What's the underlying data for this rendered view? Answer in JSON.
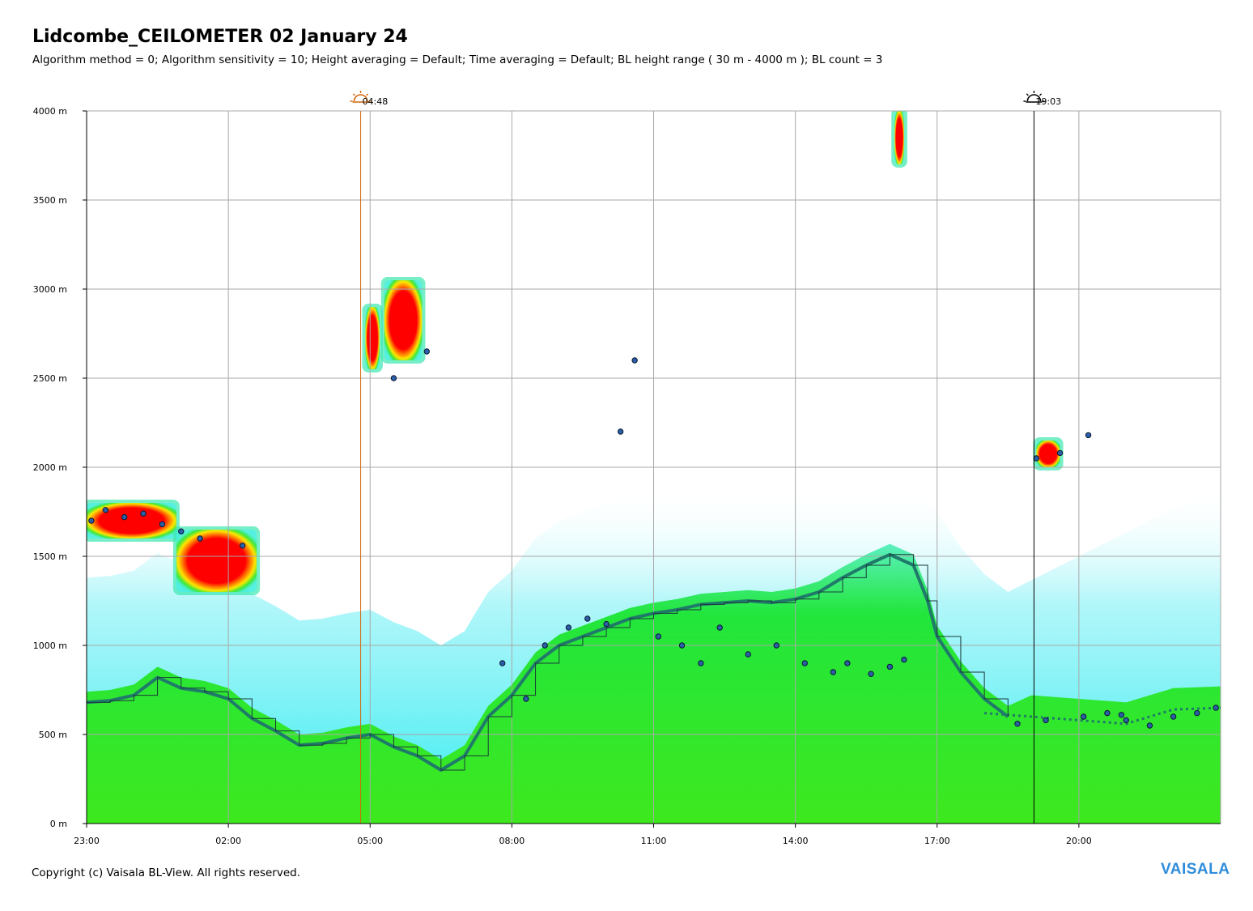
{
  "header": {
    "title": "Lidcombe_CEILOMETER 02 January 24",
    "subtitle": "Algorithm method = 0; Algorithm sensitivity = 10; Height averaging = Default; Time averaging = Default; BL height range ( 30 m - 4000 m ); BL count = 3"
  },
  "footer": {
    "copyright": "Copyright (c) Vaisala BL-View. All rights reserved.",
    "brand": "VAISALA"
  },
  "chart_data": {
    "type": "heatmap",
    "title": "Lidcombe_CEILOMETER 02 January 24",
    "xlabel": "",
    "ylabel": "",
    "x_range_hours": [
      23,
      47
    ],
    "ylim": [
      0,
      4000
    ],
    "y_ticks": [
      0,
      500,
      1000,
      1500,
      2000,
      2500,
      3000,
      3500,
      4000
    ],
    "y_tick_labels": [
      "0 m",
      "500 m",
      "1000 m",
      "1500 m",
      "2000 m",
      "2500 m",
      "3000 m",
      "3500 m",
      "4000 m"
    ],
    "x_ticks": [
      23,
      26,
      29,
      32,
      35,
      38,
      41,
      44
    ],
    "x_tick_labels": [
      "23:00",
      "02:00",
      "05:00",
      "08:00",
      "11:00",
      "14:00",
      "17:00",
      "20:00"
    ],
    "grid": true,
    "markers": [
      {
        "name": "sunrise",
        "time": "04:48",
        "hour": 28.8,
        "color": "#d4660a",
        "icon": "sunrise-icon"
      },
      {
        "name": "sunset",
        "time": "19:03",
        "hour": 43.05,
        "color": "#000000",
        "icon": "sunset-icon"
      }
    ],
    "colors": {
      "background_low": "#22e63c",
      "aerosol_mid": "#38f0f0",
      "cloud_strong": "#ff0000",
      "bl_height": "#1f7a6a",
      "cloud_base_points": "#2a5fa8",
      "cloud_top": "#a0a0a0"
    },
    "bl_height_m": {
      "hours": [
        23,
        23.5,
        24,
        24.5,
        25,
        25.5,
        26,
        26.5,
        27,
        27.5,
        28,
        28.5,
        29,
        29.5,
        30,
        30.5,
        31,
        31.5,
        32,
        32.5,
        33,
        33.5,
        34,
        34.5,
        35,
        35.5,
        36,
        36.5,
        37,
        37.5,
        38,
        38.5,
        39,
        39.5,
        40,
        40.5,
        40.8,
        41,
        41.5,
        42,
        42.5
      ],
      "values": [
        680,
        690,
        720,
        820,
        760,
        740,
        700,
        590,
        520,
        440,
        450,
        480,
        500,
        430,
        380,
        300,
        380,
        600,
        720,
        900,
        1000,
        1050,
        1100,
        1150,
        1180,
        1200,
        1230,
        1240,
        1250,
        1240,
        1260,
        1300,
        1380,
        1450,
        1510,
        1450,
        1250,
        1050,
        850,
        700,
        600
      ]
    },
    "bl_height_m_evening": {
      "hours": [
        42,
        43,
        44,
        45,
        46,
        47
      ],
      "values": [
        620,
        600,
        580,
        560,
        640,
        650
      ]
    },
    "cloud_base_m": {
      "hours": [
        23.1,
        23.4,
        23.8,
        24.2,
        24.6,
        25,
        25.4,
        26.3,
        29.5,
        30.2,
        31.8,
        32.3,
        32.7,
        33.2,
        33.6,
        34,
        34.3,
        34.6,
        35.1,
        35.6,
        36,
        36.4,
        37,
        37.6,
        38.2,
        38.8,
        39.1,
        39.6,
        40,
        40.3,
        43.1,
        43.6,
        44.1,
        44.6,
        45,
        45.5,
        46,
        46.5,
        46.9,
        42.7,
        43.3,
        44.2,
        44.9
      ],
      "values": [
        1700,
        1760,
        1720,
        1740,
        1680,
        1640,
        1600,
        1560,
        2500,
        2650,
        900,
        700,
        1000,
        1100,
        1150,
        1120,
        2200,
        2600,
        1050,
        1000,
        900,
        1100,
        950,
        1000,
        900,
        850,
        900,
        840,
        880,
        920,
        2050,
        2080,
        600,
        620,
        580,
        550,
        600,
        620,
        650,
        560,
        580,
        2180,
        610
      ]
    },
    "strong_cloud_layers": [
      {
        "t0": 23.0,
        "t1": 24.9,
        "base": 1600,
        "top": 1800
      },
      {
        "t0": 24.9,
        "t1": 26.6,
        "base": 1300,
        "top": 1650
      },
      {
        "t0": 28.9,
        "t1": 29.2,
        "base": 2550,
        "top": 2900
      },
      {
        "t0": 29.3,
        "t1": 30.1,
        "base": 2600,
        "top": 3050
      },
      {
        "t0": 40.1,
        "t1": 40.3,
        "base": 3700,
        "top": 4000
      },
      {
        "t0": 43.1,
        "t1": 43.6,
        "base": 2000,
        "top": 2150
      }
    ]
  }
}
